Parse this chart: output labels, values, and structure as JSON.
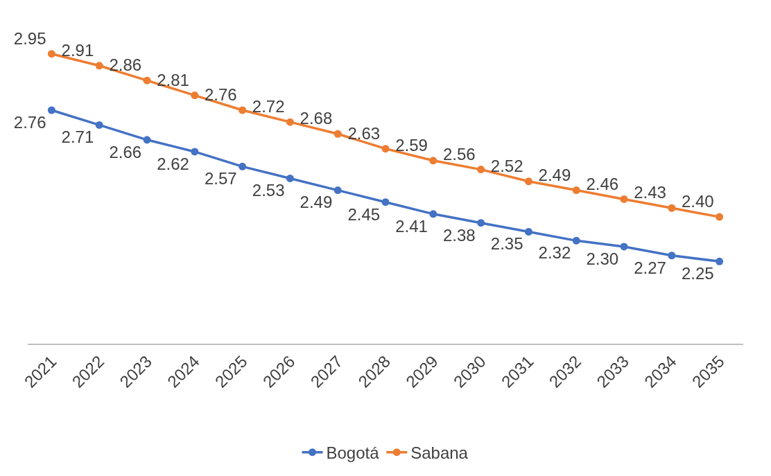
{
  "chart_data": {
    "type": "line",
    "categories": [
      "2021",
      "2022",
      "2023",
      "2024",
      "2025",
      "2026",
      "2027",
      "2028",
      "2029",
      "2030",
      "2031",
      "2032",
      "2033",
      "2034",
      "2035"
    ],
    "series": [
      {
        "name": "Bogotá",
        "color": "#4472c4",
        "values": [
          2.76,
          2.71,
          2.66,
          2.62,
          2.57,
          2.53,
          2.49,
          2.45,
          2.41,
          2.38,
          2.35,
          2.32,
          2.3,
          2.27,
          2.25
        ],
        "value_labels": [
          "2.76",
          "2.71",
          "2.66",
          "2.62",
          "2.57",
          "2.53",
          "2.49",
          "2.45",
          "2.41",
          "2.38",
          "2.35",
          "2.32",
          "2.30",
          "2.27",
          "2.25"
        ]
      },
      {
        "name": "Sabana",
        "color": "#ed7d31",
        "values": [
          2.95,
          2.91,
          2.86,
          2.81,
          2.76,
          2.72,
          2.68,
          2.63,
          2.59,
          2.56,
          2.52,
          2.49,
          2.46,
          2.43,
          2.4
        ],
        "value_labels": [
          "2.95",
          "2.91",
          "2.86",
          "2.81",
          "2.76",
          "2.72",
          "2.68",
          "2.63",
          "2.59",
          "2.56",
          "2.52",
          "2.49",
          "2.46",
          "2.43",
          "2.40"
        ]
      }
    ],
    "tick_labels": "x",
    "marker": "circle",
    "line_style": "solid",
    "legend": "bottom"
  }
}
